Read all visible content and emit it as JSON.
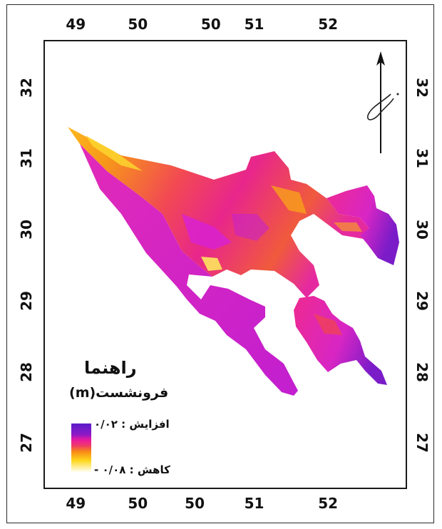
{
  "map": {
    "top_ticks": [
      {
        "label": "49",
        "lon": 49
      },
      {
        "label": "50",
        "lon": 49.73
      },
      {
        "label": "50",
        "lon": 50.59
      },
      {
        "label": "51",
        "lon": 51.1
      },
      {
        "label": "52",
        "lon": 51.97
      }
    ],
    "bottom_ticks": [
      {
        "label": "49",
        "lon": 49
      },
      {
        "label": "50",
        "lon": 49.73
      },
      {
        "label": "50",
        "lon": 50.4
      },
      {
        "label": "51",
        "lon": 51.1
      },
      {
        "label": "52",
        "lon": 51.97
      }
    ],
    "lat_ticks": [
      {
        "label": "32",
        "lat": 32
      },
      {
        "label": "31",
        "lat": 31
      },
      {
        "label": "30",
        "lat": 30
      },
      {
        "label": "29",
        "lat": 29
      },
      {
        "label": "28",
        "lat": 28
      },
      {
        "label": "27",
        "lat": 27
      }
    ],
    "lon_range": [
      48.62,
      52.9
    ],
    "lat_range": [
      26.35,
      32.67
    ],
    "colors": {
      "increase": "#5a1ec8",
      "magenta": "#e01fb8",
      "pink": "#f01c86",
      "orange": "#f58a16",
      "yellow": "#fde21e",
      "decrease": "#fffff2"
    },
    "north_arrow_icon": "north-arrow-icon"
  },
  "legend": {
    "title": "راهنما",
    "subtitle": "فرونشست(m)",
    "high_label": "افزایش : ۰/۰۲",
    "low_label": "کاهش : ۰/۰۸ -"
  }
}
